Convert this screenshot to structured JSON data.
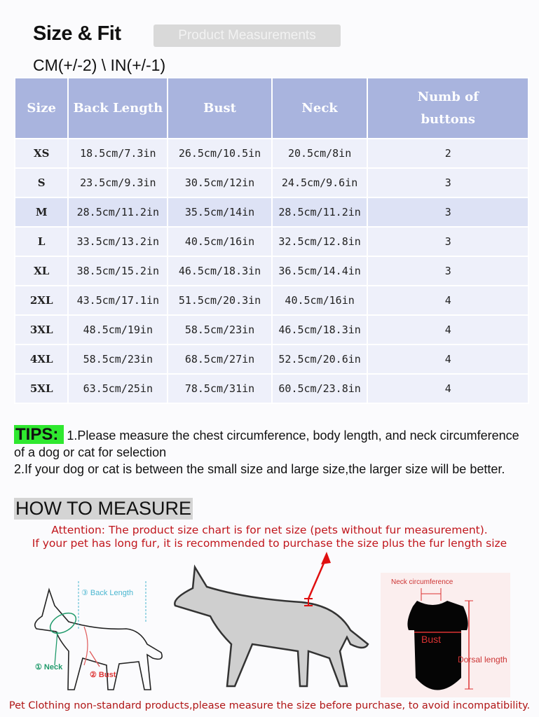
{
  "header": {
    "title": "Size & Fit",
    "tab": "Product Measurements",
    "units": "CM(+/-2) \\ IN(+/-1)"
  },
  "table": {
    "columns": [
      "Size",
      "Back Length",
      "Bust",
      "Neck",
      "Numb of buttons"
    ],
    "rows": [
      [
        "XS",
        "18.5cm/7.3in",
        "26.5cm/10.5in",
        "20.5cm/8in",
        "2"
      ],
      [
        "S",
        "23.5cm/9.3in",
        "30.5cm/12in",
        "24.5cm/9.6in",
        "3"
      ],
      [
        "M",
        "28.5cm/11.2in",
        "35.5cm/14in",
        "28.5cm/11.2in",
        "3"
      ],
      [
        "L",
        "33.5cm/13.2in",
        "40.5cm/16in",
        "32.5cm/12.8in",
        "3"
      ],
      [
        "XL",
        "38.5cm/15.2in",
        "46.5cm/18.3in",
        "36.5cm/14.4in",
        "3"
      ],
      [
        "2XL",
        "43.5cm/17.1in",
        "51.5cm/20.3in",
        "40.5cm/16in",
        "4"
      ],
      [
        "3XL",
        "48.5cm/19in",
        "58.5cm/23in",
        "46.5cm/18.3in",
        "4"
      ],
      [
        "4XL",
        "58.5cm/23in",
        "68.5cm/27in",
        "52.5cm/20.6in",
        "4"
      ],
      [
        "5XL",
        "63.5cm/25in",
        "78.5cm/31in",
        "60.5cm/23.8in",
        "4"
      ]
    ]
  },
  "tips": {
    "label": "TIPS:",
    "line1": "1.Please measure the chest circumference, body length, and neck circumference of a dog or cat for selection",
    "line2": "2.If your dog or cat is between the small size and large size,the larger size will be better."
  },
  "how_to_measure": {
    "title": "HOW TO MEASURE",
    "attention1": "Attention: The product size chart is for net size (pets without fur measurement).",
    "attention2": "If your pet has long fur, it is recommended to purchase the size plus the fur length size",
    "diagram1": {
      "back": "③ Back Length",
      "neck": "① Neck",
      "bust": "② Bust"
    },
    "diagram3": {
      "neck": "Neck circumference",
      "bust": "Bust",
      "dorsal": "Dorsal length"
    },
    "footer": "Pet Clothing non-standard products,please measure the size before purchase, to avoid incompatibility."
  },
  "colors": {
    "header_bg": "#a9b4de",
    "row_bg": "#eef0fa",
    "tips_bg": "#2fe82f",
    "warning": "#c0151b"
  }
}
